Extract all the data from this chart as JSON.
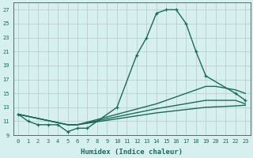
{
  "xlabel": "Humidex (Indice chaleur)",
  "ylabel": "",
  "bg_color": "#d6f0f0",
  "grid_color": "#b8c8c8",
  "line_color": "#1a6b5a",
  "xlim": [
    -0.5,
    23.5
  ],
  "ylim": [
    9,
    28
  ],
  "yticks": [
    9,
    11,
    13,
    15,
    17,
    19,
    21,
    23,
    25,
    27
  ],
  "xticks": [
    0,
    1,
    2,
    3,
    4,
    5,
    6,
    7,
    8,
    9,
    10,
    11,
    12,
    13,
    14,
    15,
    16,
    17,
    18,
    19,
    20,
    21,
    22,
    23
  ],
  "series": [
    {
      "x": [
        0,
        1,
        2,
        3,
        4,
        5,
        6,
        7,
        10,
        12,
        13,
        14,
        15,
        16,
        17,
        18,
        19,
        22,
        23
      ],
      "y": [
        12,
        11,
        10.5,
        10.5,
        10.5,
        9.5,
        10,
        10,
        13,
        20.5,
        23,
        26.5,
        27,
        27,
        25,
        21,
        17.5,
        15,
        14
      ],
      "marker": true
    },
    {
      "x": [
        0,
        5,
        6,
        14,
        19,
        20,
        22,
        23
      ],
      "y": [
        12,
        10.5,
        10.5,
        13.5,
        16,
        16,
        15.5,
        15
      ],
      "marker": false
    },
    {
      "x": [
        0,
        5,
        6,
        14,
        19,
        22,
        23
      ],
      "y": [
        12,
        10.5,
        10.5,
        12.8,
        14,
        14,
        13.5
      ],
      "marker": false
    },
    {
      "x": [
        0,
        5,
        6,
        14,
        19,
        22,
        23
      ],
      "y": [
        12,
        10.5,
        10.5,
        12.2,
        13,
        13.2,
        13.3
      ],
      "marker": false
    }
  ]
}
